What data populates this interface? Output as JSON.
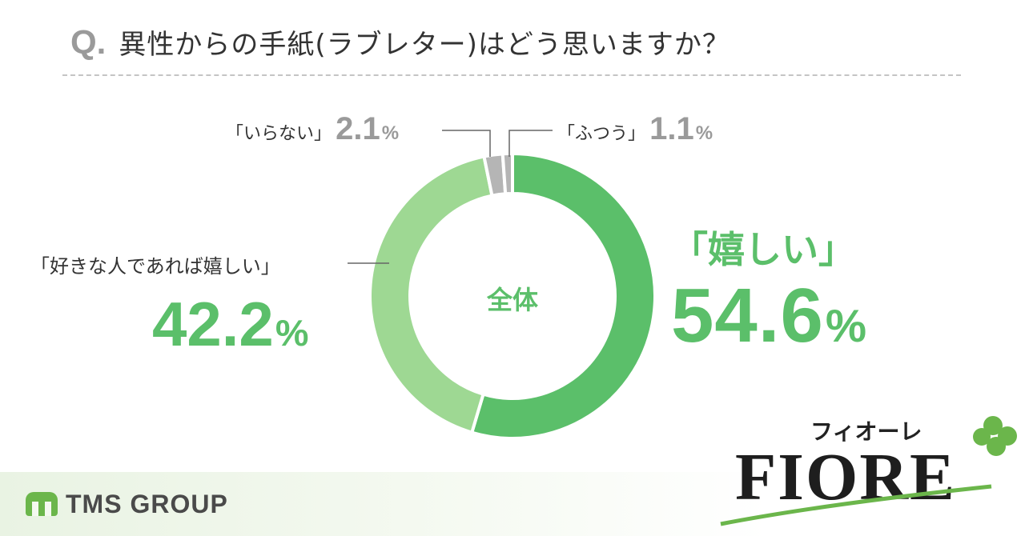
{
  "header": {
    "q_mark": "Q.",
    "question": "異性からの手紙(ラブレター)はどう思いますか？"
  },
  "chart_data": {
    "type": "pie",
    "center_label": "全体",
    "categories": [
      "「嬉しい」",
      "「好きな人であれば嬉しい」",
      "「いらない」",
      "「ふつう」"
    ],
    "values": [
      54.6,
      42.2,
      2.1,
      1.1
    ],
    "unit": "%",
    "colors": [
      "#5bbf6a",
      "#9ed893",
      "#b5b5b5",
      "#b5b5b5"
    ]
  },
  "labels": {
    "happy": {
      "name": "「嬉しい」",
      "value": "54.6"
    },
    "if_liked": {
      "name": "「好きな人であれば嬉しい」",
      "value": "42.2"
    },
    "not_needed": {
      "name": "「いらない」",
      "value": "2.1"
    },
    "neutral": {
      "name": "「ふつう」",
      "value": "1.1"
    },
    "percent_sign": "%"
  },
  "footer": {
    "tms_text": "TMS GROUP",
    "fiore_kana": "フィオーレ",
    "fiore_word": "FIORE",
    "accent_color": "#6bb64b"
  }
}
